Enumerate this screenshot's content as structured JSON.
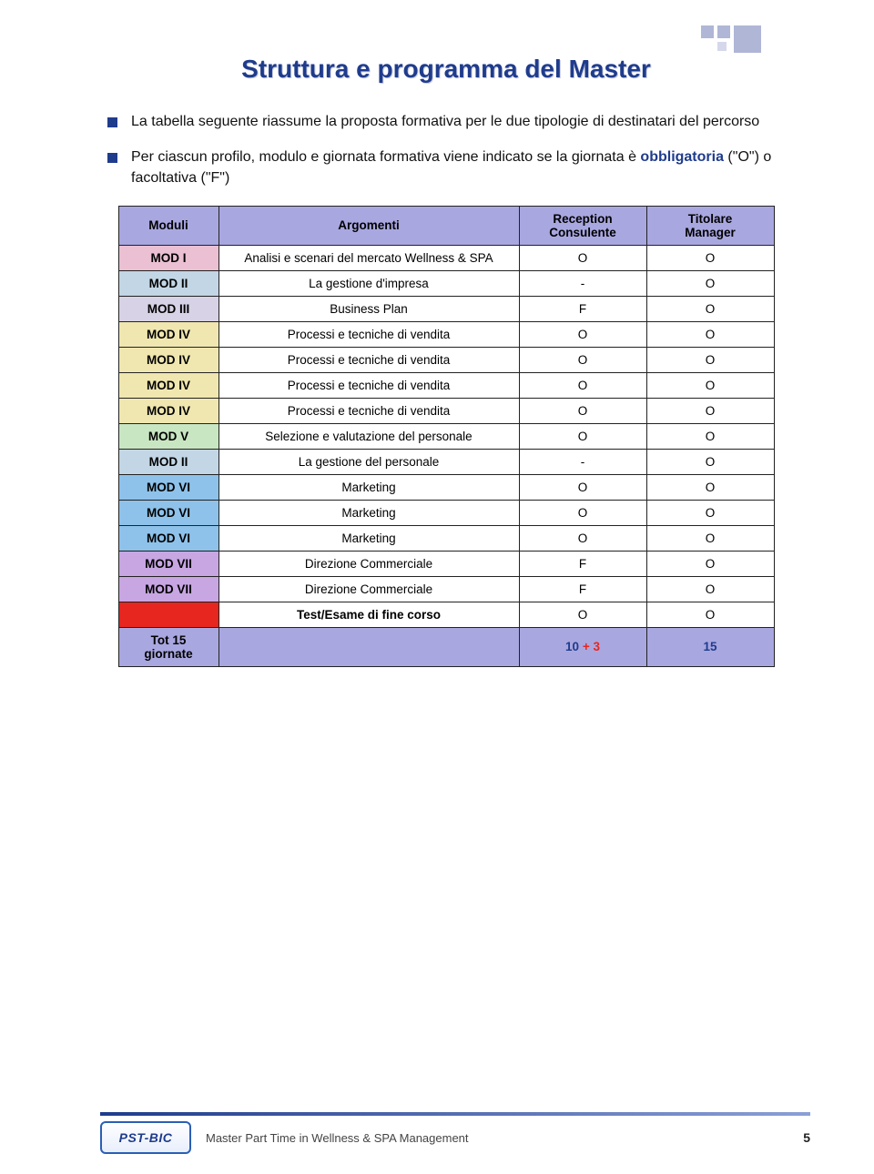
{
  "title": "Struttura e programma del Master",
  "bullets": [
    {
      "text": "La tabella seguente riassume la proposta formativa per le due tipologie di destinatari del percorso"
    },
    {
      "prefix": "Per ciascun profilo, modulo e giornata formativa viene indicato se la giornata è ",
      "bold": "obbligatoria",
      "mid": " (\"O\") o facoltativa (\"F\")"
    }
  ],
  "table": {
    "headers": {
      "c1": "Moduli",
      "c2": "Argomenti",
      "c3_l1": "Reception",
      "c3_l2": "Consulente",
      "c4_l1": "Titolare",
      "c4_l2": "Manager"
    },
    "header_bg": "#a9a7e0",
    "rows": [
      {
        "mod": "MOD I",
        "mod_bg": "#eac0d2",
        "arg": "Analisi e scenari del mercato Wellness & SPA",
        "rc": "O",
        "tm": "O"
      },
      {
        "mod": "MOD II",
        "mod_bg": "#c3d6e5",
        "arg": "La gestione d'impresa",
        "rc": "-",
        "tm": "O"
      },
      {
        "mod": "MOD III",
        "mod_bg": "#d8d2e6",
        "arg": "Business Plan",
        "rc": "F",
        "tm": "O"
      },
      {
        "mod": "MOD IV",
        "mod_bg": "#f0e7b0",
        "arg": "Processi e tecniche di vendita",
        "rc": "O",
        "tm": "O"
      },
      {
        "mod": "MOD IV",
        "mod_bg": "#f0e7b0",
        "arg": "Processi e tecniche di vendita",
        "rc": "O",
        "tm": "O"
      },
      {
        "mod": "MOD IV",
        "mod_bg": "#f0e7b0",
        "arg": "Processi e tecniche di vendita",
        "rc": "O",
        "tm": "O"
      },
      {
        "mod": "MOD IV",
        "mod_bg": "#f0e7b0",
        "arg": "Processi e tecniche di vendita",
        "rc": "O",
        "tm": "O"
      },
      {
        "mod": "MOD V",
        "mod_bg": "#c9e6c2",
        "arg": "Selezione e valutazione del personale",
        "rc": "O",
        "tm": "O"
      },
      {
        "mod": "MOD II",
        "mod_bg": "#c3d6e5",
        "arg": "La gestione del personale",
        "rc": "-",
        "tm": "O"
      },
      {
        "mod": "MOD VI",
        "mod_bg": "#8ec2ea",
        "arg": "Marketing",
        "rc": "O",
        "tm": "O"
      },
      {
        "mod": "MOD VI",
        "mod_bg": "#8ec2ea",
        "arg": "Marketing",
        "rc": "O",
        "tm": "O"
      },
      {
        "mod": "MOD VI",
        "mod_bg": "#8ec2ea",
        "arg": "Marketing",
        "rc": "O",
        "tm": "O"
      },
      {
        "mod": "MOD VII",
        "mod_bg": "#c7a6e2",
        "arg": "Direzione Commerciale",
        "rc": "F",
        "tm": "O"
      },
      {
        "mod": "MOD VII",
        "mod_bg": "#c7a6e2",
        "arg": "Direzione Commerciale",
        "rc": "F",
        "tm": "O"
      },
      {
        "mod": "",
        "mod_bg": "#e6261f",
        "arg": "Test/Esame di fine corso",
        "arg_bold": true,
        "rc": "O",
        "tm": "O"
      }
    ],
    "footer_row": {
      "mod_l1": "Tot 15",
      "mod_l2": "giornate",
      "mod_bg": "#a9a7e0",
      "arg": "",
      "arg_bg": "#a9a7e0",
      "rc_html": "10 + 3",
      "rc_color_main": "#1f3c8c",
      "rc_color_plus": "#e6261f",
      "rc_bg": "#a9a7e0",
      "tm": "15",
      "tm_color": "#1f3c8c",
      "tm_bg": "#a9a7e0"
    }
  },
  "footer": {
    "logo_text": "PST-BIC",
    "text": "Master Part Time in Wellness &  SPA Management",
    "page_num": "5"
  },
  "colors": {
    "title": "#1f3c8c",
    "bullet_square": "#1f3c8c",
    "bold_color": "#1f3c8c"
  }
}
